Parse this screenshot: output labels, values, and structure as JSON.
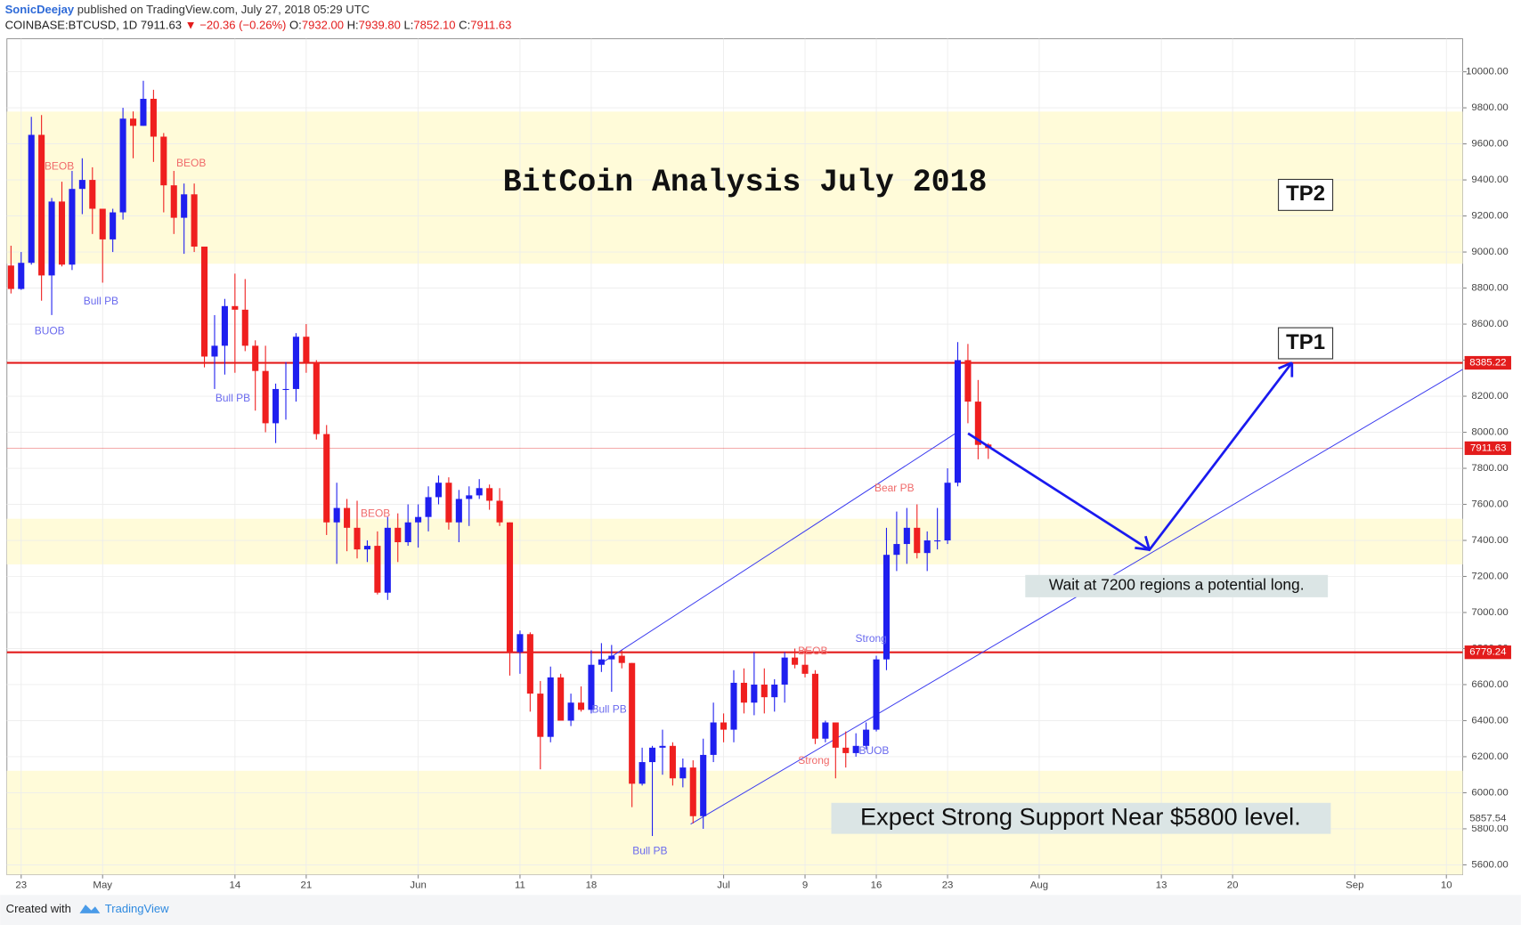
{
  "header": {
    "author": "SonicDeejay",
    "published": "published on TradingView.com, July 27, 2018 05:29 UTC",
    "symbol": "COINBASE:BTCUSD, 1D",
    "last": "7911.63",
    "change": "−20.36 (−0.26%)",
    "ohlc": [
      {
        "label": "O:",
        "value": "7932.00"
      },
      {
        "label": "H:",
        "value": "7939.80"
      },
      {
        "label": "L:",
        "value": "7852.10"
      },
      {
        "label": "C:",
        "value": "7911.63"
      }
    ]
  },
  "footer": {
    "created": "Created with",
    "brand": "TradingView"
  },
  "chart_data": {
    "type": "candlestick",
    "title": "BitCoin Analysis July 2018",
    "up_color": "#1f1fef",
    "down_color": "#ef1f1f",
    "grid": true,
    "open": [
      8925,
      8795,
      8940,
      9650,
      8870,
      9280,
      8930,
      9350,
      9400,
      9240,
      9070,
      9220,
      9740,
      9700,
      9850,
      9640,
      9370,
      9190,
      9320,
      9030,
      8420,
      8480,
      8700,
      8680,
      8480,
      8340,
      8050,
      8240,
      8240,
      8530,
      8390,
      7990,
      7500,
      7580,
      7470,
      7350,
      7370,
      7110,
      7470,
      7390,
      7500,
      7530,
      7640,
      7720,
      7500,
      7630,
      7650,
      7690,
      7620,
      7500,
      6780,
      6880,
      6550,
      6310,
      6640,
      6400,
      6500,
      6460,
      6710,
      6740,
      6760,
      6720,
      6050,
      6170,
      6250,
      6260,
      6080,
      6140,
      5870,
      6210,
      6390,
      6350,
      6610,
      6500,
      6600,
      6530,
      6600,
      6750,
      6710,
      6660,
      6300,
      6390,
      6250,
      6220,
      6260,
      6350,
      6740,
      7320,
      7380,
      7470,
      7330,
      7400,
      7400,
      7720,
      8400,
      8170,
      7932
    ],
    "high": [
      9035,
      9000,
      9750,
      9760,
      9300,
      9390,
      9450,
      9520,
      9470,
      9240,
      9240,
      9800,
      9780,
      9950,
      9900,
      9660,
      9450,
      9380,
      9380,
      9030,
      8650,
      8740,
      8880,
      8850,
      8510,
      8480,
      8270,
      8390,
      8550,
      8600,
      8400,
      8040,
      7720,
      7630,
      7620,
      7400,
      7450,
      7530,
      7550,
      7600,
      7600,
      7700,
      7760,
      7750,
      7680,
      7700,
      7740,
      7710,
      7690,
      7500,
      6900,
      6890,
      6620,
      6700,
      6660,
      6550,
      6590,
      6790,
      6830,
      6820,
      6790,
      6720,
      6250,
      6260,
      6350,
      6280,
      6190,
      6180,
      6300,
      6500,
      6440,
      6680,
      6690,
      6780,
      6690,
      6630,
      6780,
      6800,
      6800,
      6680,
      6400,
      6390,
      6340,
      6330,
      6390,
      6760,
      7470,
      7560,
      7580,
      7600,
      7450,
      7580,
      7800,
      8500,
      8490,
      8290,
      7939.8
    ],
    "low": [
      8770,
      8790,
      8930,
      8730,
      8650,
      8920,
      8900,
      9210,
      9100,
      8830,
      9000,
      9180,
      9520,
      9700,
      9500,
      9220,
      9100,
      8990,
      9000,
      8360,
      8240,
      8320,
      8330,
      8450,
      8120,
      8000,
      7940,
      8070,
      8170,
      8330,
      7960,
      7430,
      7270,
      7340,
      7300,
      7280,
      7100,
      7070,
      7280,
      7370,
      7360,
      7450,
      7600,
      7460,
      7390,
      7480,
      7630,
      7570,
      7480,
      6650,
      6660,
      6450,
      6130,
      6280,
      6400,
      6370,
      6450,
      6440,
      6670,
      6560,
      6690,
      5920,
      6040,
      5760,
      6100,
      6040,
      6030,
      5830,
      5800,
      6170,
      6280,
      6280,
      6440,
      6430,
      6440,
      6450,
      6500,
      6690,
      6640,
      6270,
      6280,
      6080,
      6140,
      6200,
      6240,
      6340,
      6680,
      7230,
      7270,
      7300,
      7230,
      7350,
      7380,
      7700,
      8050,
      7850,
      7852.1
    ],
    "close": [
      8795,
      8940,
      9650,
      8870,
      9280,
      8930,
      9350,
      9400,
      9240,
      9070,
      9220,
      9740,
      9700,
      9850,
      9640,
      9370,
      9190,
      9320,
      9030,
      8420,
      8480,
      8700,
      8680,
      8480,
      8340,
      8050,
      8240,
      8240,
      8530,
      8390,
      7990,
      7500,
      7580,
      7470,
      7350,
      7370,
      7110,
      7470,
      7390,
      7500,
      7530,
      7640,
      7720,
      7500,
      7630,
      7650,
      7690,
      7620,
      7500,
      6780,
      6880,
      6550,
      6310,
      6640,
      6400,
      6500,
      6460,
      6710,
      6740,
      6760,
      6720,
      6050,
      6170,
      6250,
      6260,
      6080,
      6140,
      5870,
      6210,
      6390,
      6350,
      6610,
      6500,
      6600,
      6530,
      6600,
      6750,
      6710,
      6660,
      6300,
      6390,
      6250,
      6220,
      6260,
      6350,
      6740,
      7320,
      7380,
      7470,
      7330,
      7400,
      7400,
      7720,
      8400,
      8170,
      7930,
      7911.63
    ],
    "xlim": [
      -0.4,
      142.6
    ],
    "xticks": [
      {
        "value": 1,
        "label": "23"
      },
      {
        "value": 9,
        "label": "May"
      },
      {
        "value": 22,
        "label": "14"
      },
      {
        "value": 29,
        "label": "21"
      },
      {
        "value": 40,
        "label": "Jun"
      },
      {
        "value": 50,
        "label": "11"
      },
      {
        "value": 57,
        "label": "18"
      },
      {
        "value": 70,
        "label": "Jul"
      },
      {
        "value": 78,
        "label": "9"
      },
      {
        "value": 85,
        "label": "16"
      },
      {
        "value": 92,
        "label": "23"
      },
      {
        "value": 101,
        "label": "Aug"
      },
      {
        "value": 113,
        "label": "13"
      },
      {
        "value": 120,
        "label": "20"
      },
      {
        "value": 132,
        "label": "Sep"
      },
      {
        "value": 141,
        "label": "10"
      }
    ],
    "ylim": [
      5546,
      10183
    ],
    "yticks": [
      {
        "value": 5600,
        "label": "5600.00"
      },
      {
        "value": 5800,
        "label": "5800.00"
      },
      {
        "value": 6000,
        "label": "6000.00"
      },
      {
        "value": 6200,
        "label": "6200.00"
      },
      {
        "value": 6400,
        "label": "6400.00"
      },
      {
        "value": 6600,
        "label": "6600.00"
      },
      {
        "value": 6800,
        "label": "6800.00"
      },
      {
        "value": 7000,
        "label": "7000.00"
      },
      {
        "value": 7200,
        "label": "7200.00"
      },
      {
        "value": 7400,
        "label": "7400.00"
      },
      {
        "value": 7600,
        "label": "7600.00"
      },
      {
        "value": 7800,
        "label": "7800.00"
      },
      {
        "value": 8000,
        "label": "8000.00"
      },
      {
        "value": 8200,
        "label": "8200.00"
      },
      {
        "value": 8400,
        "label": "8400.00"
      },
      {
        "value": 8600,
        "label": "8600.00"
      },
      {
        "value": 8800,
        "label": "8800.00"
      },
      {
        "value": 9000,
        "label": "9000.00"
      },
      {
        "value": 9200,
        "label": "9200.00"
      },
      {
        "value": 9400,
        "label": "9400.00"
      },
      {
        "value": 9600,
        "label": "9600.00"
      },
      {
        "value": 9800,
        "label": "9800.00"
      },
      {
        "value": 10000,
        "label": "10000.00"
      }
    ],
    "zones": [
      [
        8935,
        9779
      ],
      [
        7267,
        7520
      ],
      [
        5546,
        6122
      ]
    ],
    "levels": [
      {
        "value": 8385.22,
        "color": "#e31c1c",
        "width": 2
      },
      {
        "value": 7911.63,
        "color": "#e31c1c",
        "width": 0.6
      },
      {
        "value": 6779.24,
        "color": "#e31c1c",
        "width": 2
      },
      {
        "value": 5857.54,
        "color": "#ffffff",
        "width": 0
      }
    ],
    "annotations": [
      "TP2",
      "TP1",
      "Wait at 7200 regions a potential long.",
      "Expect Strong Support Near $5800 level."
    ],
    "signals": [
      "BEOB",
      "BEOB",
      "Bull PB",
      "BUOB",
      "Bull PB",
      "BEOB",
      "Bull PB",
      "Bull PB",
      "Bear PB",
      "Strong",
      "BEOB",
      "Strong",
      "BUOB"
    ]
  }
}
